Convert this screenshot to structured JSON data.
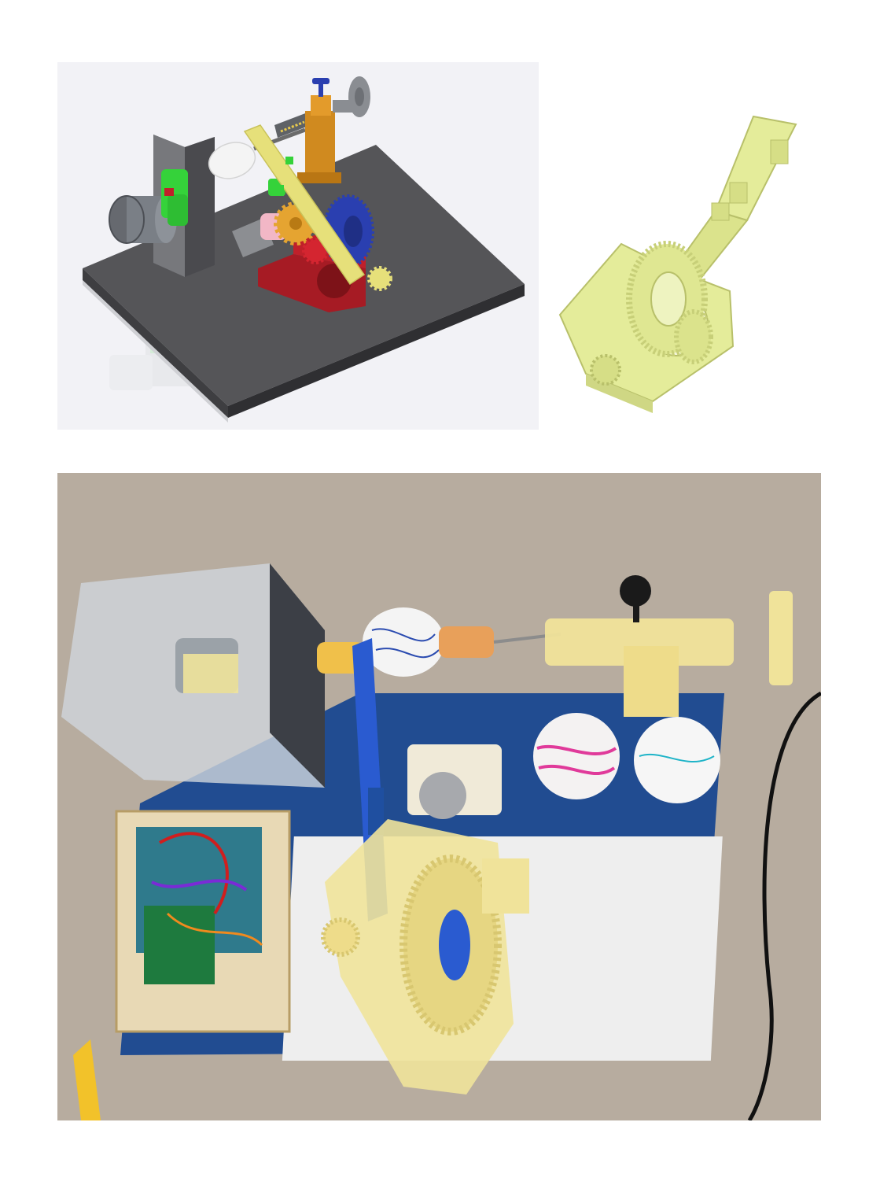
{
  "figure": {
    "panels": [
      {
        "id": "cad-assembly",
        "description_visible": false
      },
      {
        "id": "arm-gear-part",
        "description_visible": false
      },
      {
        "id": "physical-prototype-photo",
        "description_visible": false
      }
    ],
    "colors": {
      "base_plate": "#555558",
      "arm_yellow": "#e6e07a",
      "gear_red": "#c0202a",
      "gear_blue": "#2a3fb0",
      "tailstock_orange": "#d08a1f",
      "coupler_green": "#35d23a",
      "motor_gray": "#7a7f86",
      "part_yellow_green": "#e4ec9a",
      "photo_carpet": "#b7ac9f",
      "photo_blue_board": "#214c91",
      "photo_resin_yellow": "#f0e39a"
    }
  }
}
